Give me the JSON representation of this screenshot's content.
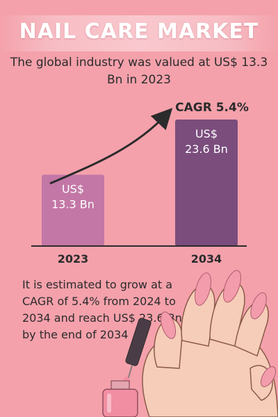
{
  "header": {
    "title": "NAIL CARE MARKET",
    "subtitle": "The global industry was valued at US$ 13.3 Bn in 2023"
  },
  "chart_data": {
    "type": "bar",
    "categories": [
      "2023",
      "2034"
    ],
    "values": [
      13.3,
      23.6
    ],
    "value_labels": [
      [
        "US$",
        "13.3 Bn"
      ],
      [
        "US$",
        "23.6 Bn"
      ]
    ],
    "annotation": "CAGR 5.4%",
    "bar_colors": [
      "#c377a6",
      "#7a4d7d"
    ],
    "ylim": [
      0,
      23.6
    ]
  },
  "footer": {
    "text": "It is estimated to grow at a CAGR of 5.4% from 2024 to 2034 and reach US$ 23.6 Bn by the end of 2034"
  },
  "colors": {
    "background": "#f4a1ab",
    "nail": "#f39cac",
    "skin": "#f6cdb8",
    "bottle": "#f18ea1",
    "cap": "#4a3c46"
  },
  "illustration": {
    "icon": "hand-with-nail-polish-icon"
  }
}
